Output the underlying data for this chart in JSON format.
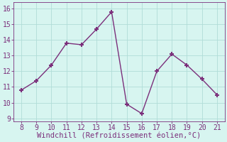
{
  "x": [
    8,
    9,
    10,
    11,
    12,
    13,
    14,
    15,
    16,
    17,
    18,
    19,
    20,
    21
  ],
  "y": [
    10.8,
    11.4,
    12.4,
    13.8,
    13.7,
    14.7,
    15.8,
    9.9,
    9.3,
    12.0,
    13.1,
    12.4,
    11.5,
    10.5
  ],
  "line_color": "#7b2f7b",
  "marker": "+",
  "marker_size": 5,
  "marker_linewidth": 1.5,
  "background_color": "#d7f5f0",
  "grid_color": "#b0ddd8",
  "xlabel": "Windchill (Refroidissement éolien,°C)",
  "xlabel_color": "#7b2f7b",
  "tick_color": "#7b2f7b",
  "spine_color": "#7b2f7b",
  "xlim": [
    7.5,
    21.5
  ],
  "ylim": [
    8.8,
    16.4
  ],
  "yticks": [
    9,
    10,
    11,
    12,
    13,
    14,
    15,
    16
  ],
  "xticks": [
    8,
    9,
    10,
    11,
    12,
    13,
    14,
    15,
    16,
    17,
    18,
    19,
    20,
    21
  ],
  "linewidth": 1.0,
  "tick_labelsize": 7,
  "xlabel_fontsize": 7.5
}
